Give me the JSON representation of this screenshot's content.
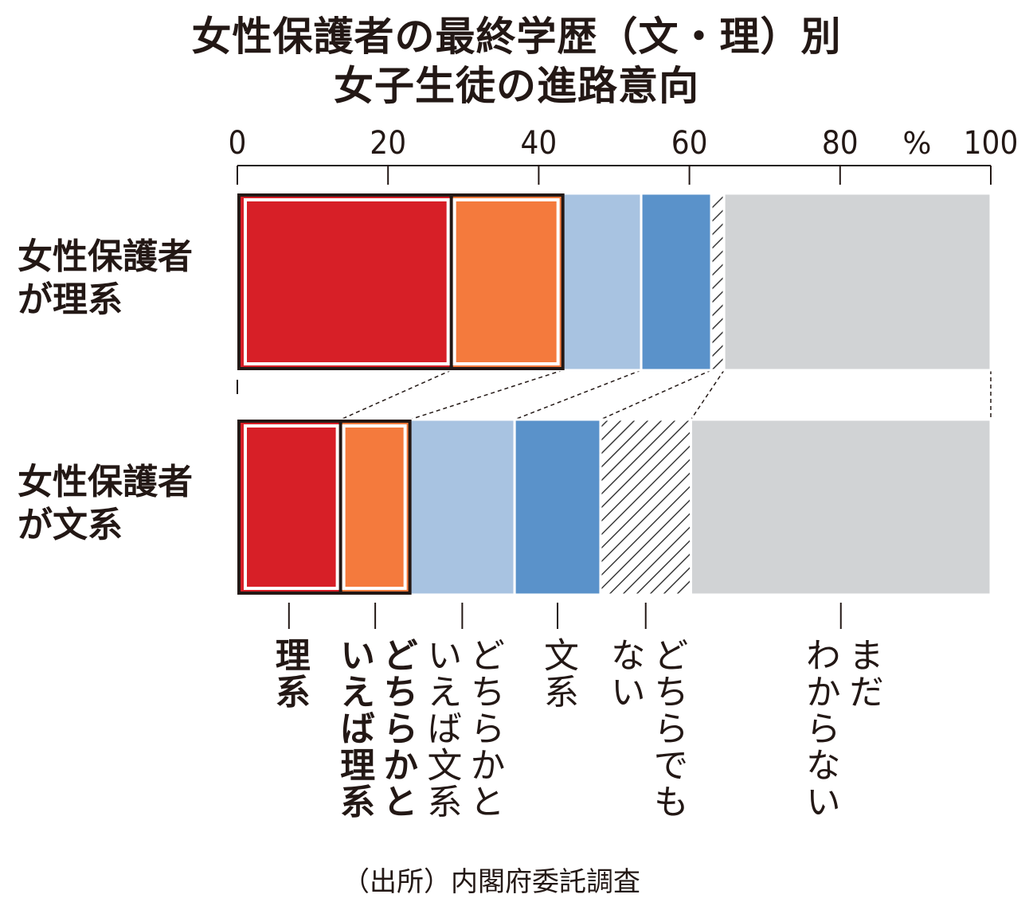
{
  "chart_data": {
    "type": "bar",
    "orientation": "horizontal",
    "stacked": true,
    "title": "女性保護者の最終学歴（文・理）別",
    "subtitle": "女子生徒の進路意向",
    "x_ticks": [
      "0",
      "20",
      "40",
      "60",
      "80",
      "100"
    ],
    "x_unit": "%",
    "xlim": [
      0,
      100
    ],
    "categories": [
      "女性保護者が理系",
      "女性保護者が文系"
    ],
    "category_lines": [
      [
        "女性保護者",
        "が理系"
      ],
      [
        "女性保護者",
        "が文系"
      ]
    ],
    "series": [
      {
        "name": "理系",
        "color": "#d71f27",
        "values": [
          28.4,
          13.7
        ],
        "boxed": true
      },
      {
        "name": "どちらかといえば理系",
        "color": "#f47a3d",
        "values": [
          14.8,
          9.2
        ],
        "boxed": true
      },
      {
        "name": "どちらかといえば文系",
        "color": "#a8c3e1",
        "values": [
          10.4,
          13.9
        ],
        "boxed": false
      },
      {
        "name": "文系",
        "color": "#5a92ca",
        "values": [
          9.3,
          11.4
        ],
        "boxed": false
      },
      {
        "name": "どちらでもない",
        "color": "hatch",
        "values": [
          1.7,
          12.0
        ],
        "boxed": false
      },
      {
        "name": "まだわからない",
        "color": "#d1d3d5",
        "values": [
          35.4,
          39.8
        ],
        "boxed": false
      }
    ],
    "legend_labels": [
      {
        "lines": [
          "理系"
        ],
        "bold": true
      },
      {
        "lines": [
          "どちらかと",
          "いえば理系"
        ],
        "bold": true
      },
      {
        "lines": [
          "どちらかと",
          "いえば文系"
        ],
        "bold": false
      },
      {
        "lines": [
          "文系"
        ],
        "bold": false
      },
      {
        "lines": [
          "どちらでも",
          "ない"
        ],
        "bold": false
      },
      {
        "lines": [
          "まだ",
          "わからない"
        ],
        "bold": false
      }
    ],
    "legend_placement": "bottom",
    "grid": false
  },
  "source": "（出所）内閣府委託調査"
}
